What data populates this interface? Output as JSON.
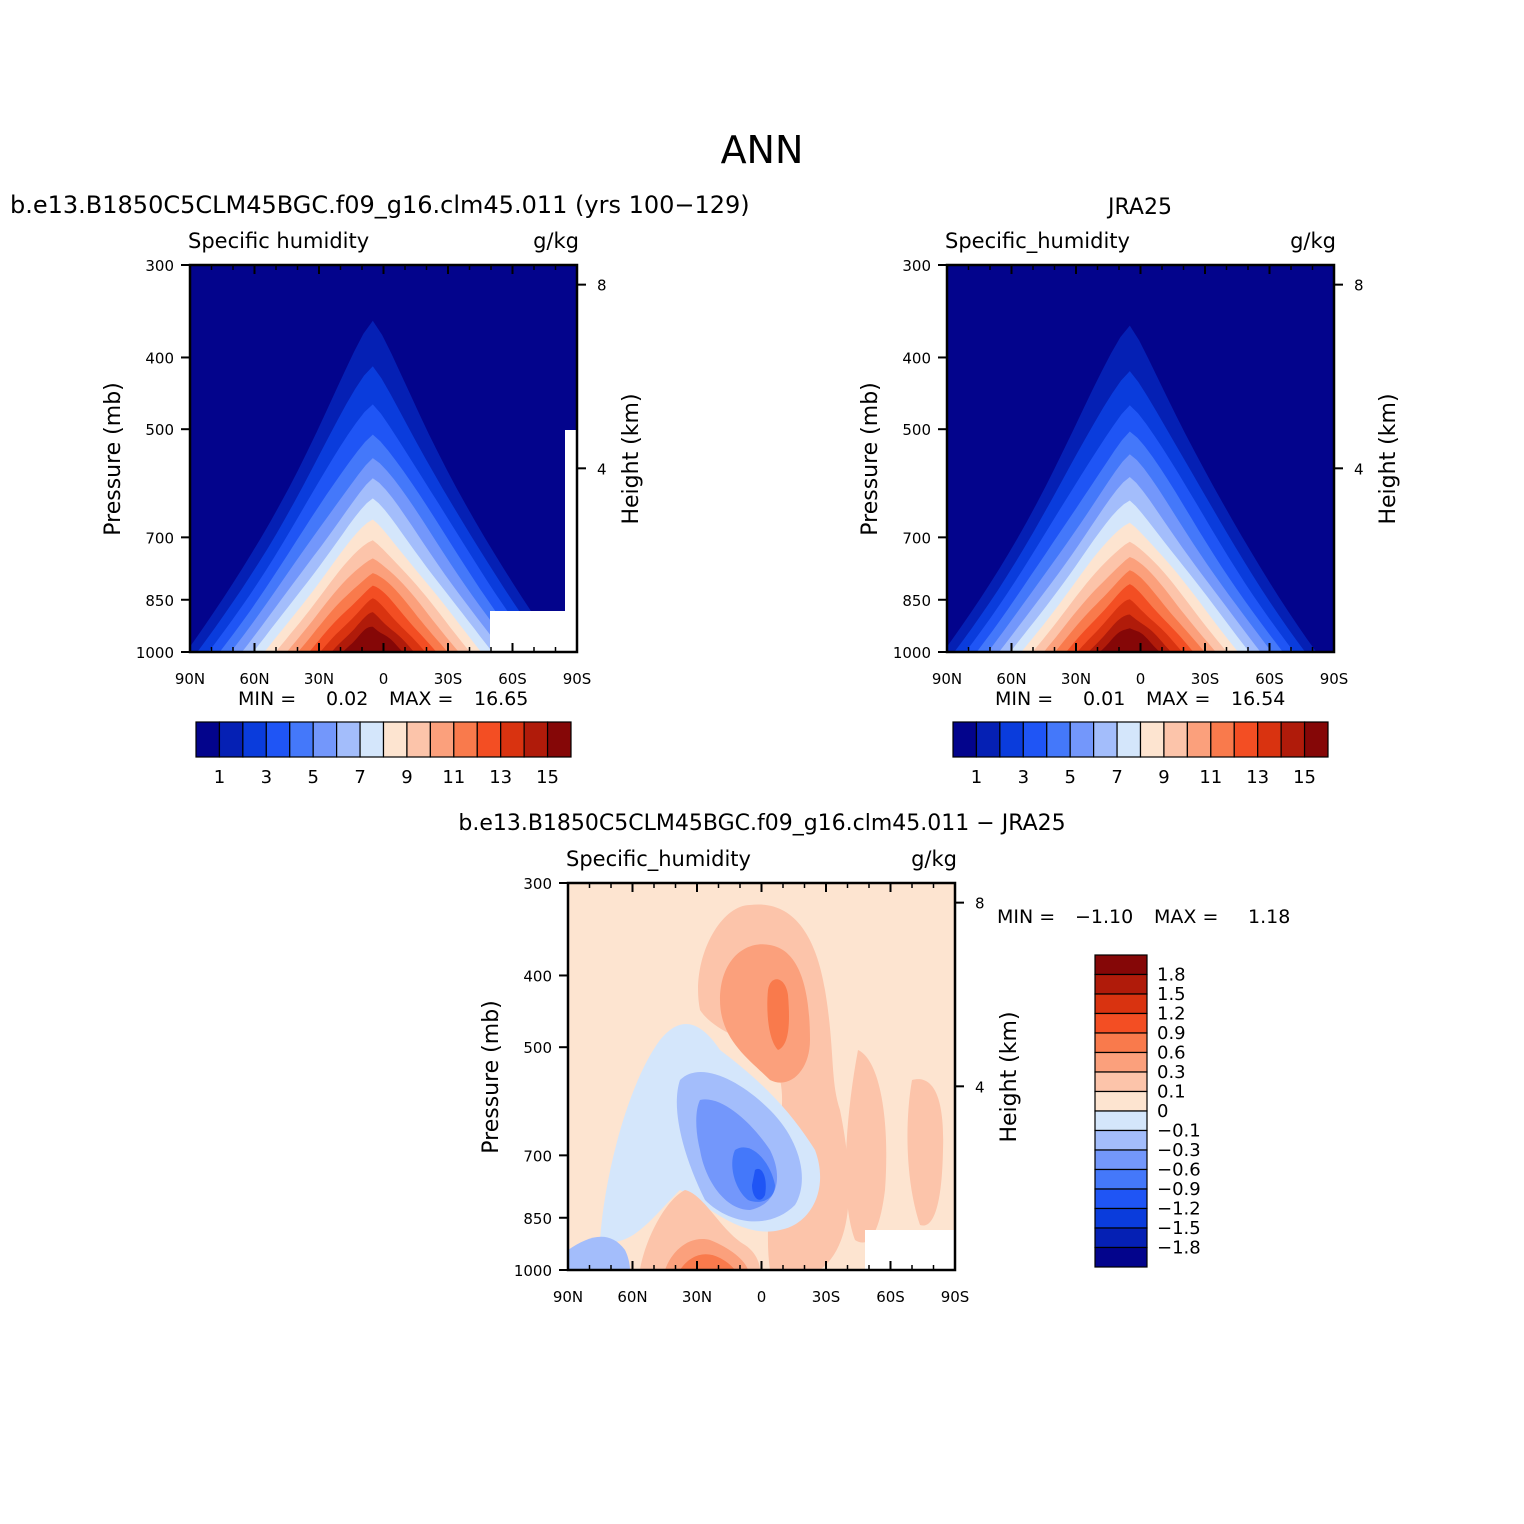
{
  "figure_title": "ANN",
  "chart_data": [
    {
      "type": "heatmap",
      "panel": "model",
      "title": "b.e13.B1850C5CLM45BGC.f09_g16.clm45.011 (yrs 100−129)",
      "variable": "Specific humidity",
      "units": "g/kg",
      "ylabel": "Pressure (mb)",
      "ylabel_right": "Height (km)",
      "x_ticks": [
        "90N",
        "60N",
        "30N",
        "0",
        "30S",
        "60S",
        "90S"
      ],
      "x_range": [
        90,
        -90
      ],
      "y_ticks": [
        "300",
        "400",
        "500",
        "700",
        "850",
        "1000"
      ],
      "y_range": [
        300,
        1000
      ],
      "y_scale": "log",
      "height_ticks": [
        "8",
        "4"
      ],
      "stats": {
        "min_label": "MIN =",
        "min": "0.02",
        "max_label": "MAX =",
        "max": "16.65"
      },
      "colorbar": {
        "orientation": "horizontal",
        "tick_labels": [
          "1",
          "3",
          "5",
          "7",
          "9",
          "11",
          "13",
          "15"
        ],
        "levels": [
          1,
          2,
          3,
          4,
          5,
          6,
          7,
          8,
          9,
          10,
          11,
          12,
          13,
          14,
          15
        ],
        "colors": [
          "#03048c",
          "#0520b4",
          "#0a3cdc",
          "#1f55f5",
          "#4478fa",
          "#7397fb",
          "#a3bdfb",
          "#d4e6fb",
          "#fde4d0",
          "#fcc4aa",
          "#fba07c",
          "#f97a4c",
          "#f34e23",
          "#d93310",
          "#b01b0a",
          "#850707"
        ]
      },
      "profile_note_km": [
        {
          "lat": -90,
          "q": 1
        },
        {
          "lat": -60,
          "q": 1
        }
      ],
      "peak": {
        "lat": 5,
        "value": 16.65
      },
      "missing_region": "surface-south"
    },
    {
      "type": "heatmap",
      "panel": "obs",
      "title": "JRA25",
      "variable": "Specific_humidity",
      "units": "g/kg",
      "ylabel": "Pressure (mb)",
      "ylabel_right": "Height (km)",
      "x_ticks": [
        "90N",
        "60N",
        "30N",
        "0",
        "30S",
        "60S",
        "90S"
      ],
      "x_range": [
        90,
        -90
      ],
      "y_ticks": [
        "300",
        "400",
        "500",
        "700",
        "850",
        "1000"
      ],
      "y_range": [
        300,
        1000
      ],
      "y_scale": "log",
      "height_ticks": [
        "8",
        "4"
      ],
      "stats": {
        "min_label": "MIN =",
        "min": "0.01",
        "max_label": "MAX =",
        "max": "16.54"
      },
      "colorbar": {
        "orientation": "horizontal",
        "tick_labels": [
          "1",
          "3",
          "5",
          "7",
          "9",
          "11",
          "13",
          "15"
        ],
        "levels": [
          1,
          2,
          3,
          4,
          5,
          6,
          7,
          8,
          9,
          10,
          11,
          12,
          13,
          14,
          15
        ],
        "colors": [
          "#03048c",
          "#0520b4",
          "#0a3cdc",
          "#1f55f5",
          "#4478fa",
          "#7397fb",
          "#a3bdfb",
          "#d4e6fb",
          "#fde4d0",
          "#fcc4aa",
          "#fba07c",
          "#f97a4c",
          "#f34e23",
          "#d93310",
          "#b01b0a",
          "#850707"
        ]
      },
      "peak": {
        "lat": 5,
        "value": 16.54
      }
    },
    {
      "type": "heatmap",
      "panel": "diff",
      "title": "b.e13.B1850C5CLM45BGC.f09_g16.clm45.011 − JRA25",
      "variable": "Specific_humidity",
      "units": "g/kg",
      "ylabel": "Pressure (mb)",
      "ylabel_right": "Height (km)",
      "x_ticks": [
        "90N",
        "60N",
        "30N",
        "0",
        "30S",
        "60S",
        "90S"
      ],
      "x_range": [
        90,
        -90
      ],
      "y_ticks": [
        "300",
        "400",
        "500",
        "700",
        "850",
        "1000"
      ],
      "y_range": [
        300,
        1000
      ],
      "y_scale": "log",
      "height_ticks": [
        "8",
        "4"
      ],
      "stats": {
        "min_label": "MIN =",
        "min": "−1.10",
        "max_label": "MAX =",
        "max": "1.18"
      },
      "colorbar": {
        "orientation": "vertical",
        "tick_labels": [
          "1.8",
          "1.5",
          "1.2",
          "0.9",
          "0.6",
          "0.3",
          "0.1",
          "0",
          "−0.1",
          "−0.3",
          "−0.6",
          "−0.9",
          "−1.2",
          "−1.5",
          "−1.8"
        ],
        "colors_top_to_bottom": [
          "#850707",
          "#b01b0a",
          "#d93310",
          "#f34e23",
          "#f97a4c",
          "#fba07c",
          "#fcc4aa",
          "#fde4d0",
          "#d4e6fb",
          "#a3bdfb",
          "#7397fb",
          "#4478fa",
          "#1f55f5",
          "#0a3cdc",
          "#0520b4",
          "#03048c"
        ]
      }
    }
  ]
}
